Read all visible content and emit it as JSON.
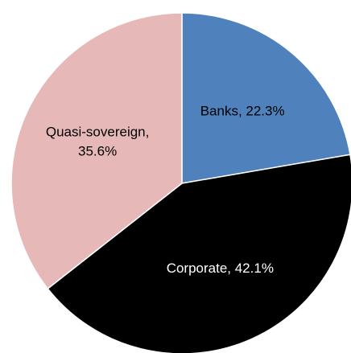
{
  "chart_data": {
    "type": "pie",
    "values": [
      22.3,
      42.1,
      35.6
    ],
    "value_labels": [
      [
        "Banks, 22.3%"
      ],
      [
        "Corporate, 42.1%"
      ],
      [
        "Quasi-sovereign,",
        "35.6%"
      ]
    ],
    "colors": [
      "#4f81bd",
      "#000000",
      "#e6b9b8"
    ],
    "label_colors": [
      "#000000",
      "#ffffff",
      "#000000"
    ]
  }
}
